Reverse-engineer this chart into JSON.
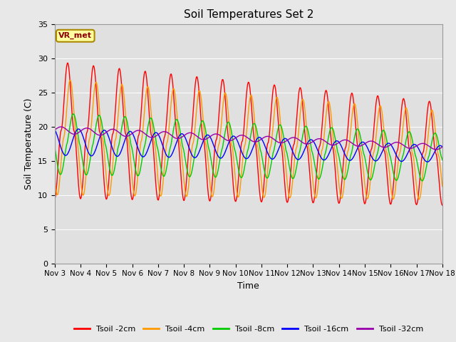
{
  "title": "Soil Temperatures Set 2",
  "xlabel": "Time",
  "ylabel": "Soil Temperature (C)",
  "ylim": [
    0,
    35
  ],
  "yticks": [
    0,
    5,
    10,
    15,
    20,
    25,
    30,
    35
  ],
  "x_labels": [
    "Nov 3",
    "Nov 4",
    "Nov 5",
    "Nov 6",
    "Nov 7",
    "Nov 8",
    "Nov 9",
    "Nov 10",
    "Nov 11",
    "Nov 12",
    "Nov 13",
    "Nov 14",
    "Nov 15",
    "Nov 16",
    "Nov 17",
    "Nov 18"
  ],
  "annotation_text": "VR_met",
  "colors": {
    "2cm": "#ff0000",
    "4cm": "#ff9900",
    "8cm": "#00cc00",
    "16cm": "#0000ff",
    "32cm": "#9900aa"
  },
  "legend_labels": [
    "Tsoil -2cm",
    "Tsoil -4cm",
    "Tsoil -8cm",
    "Tsoil -16cm",
    "Tsoil -32cm"
  ],
  "background_plot": "#e0e0e0",
  "background_fig": "#e8e8e8",
  "linewidth": 1.0
}
